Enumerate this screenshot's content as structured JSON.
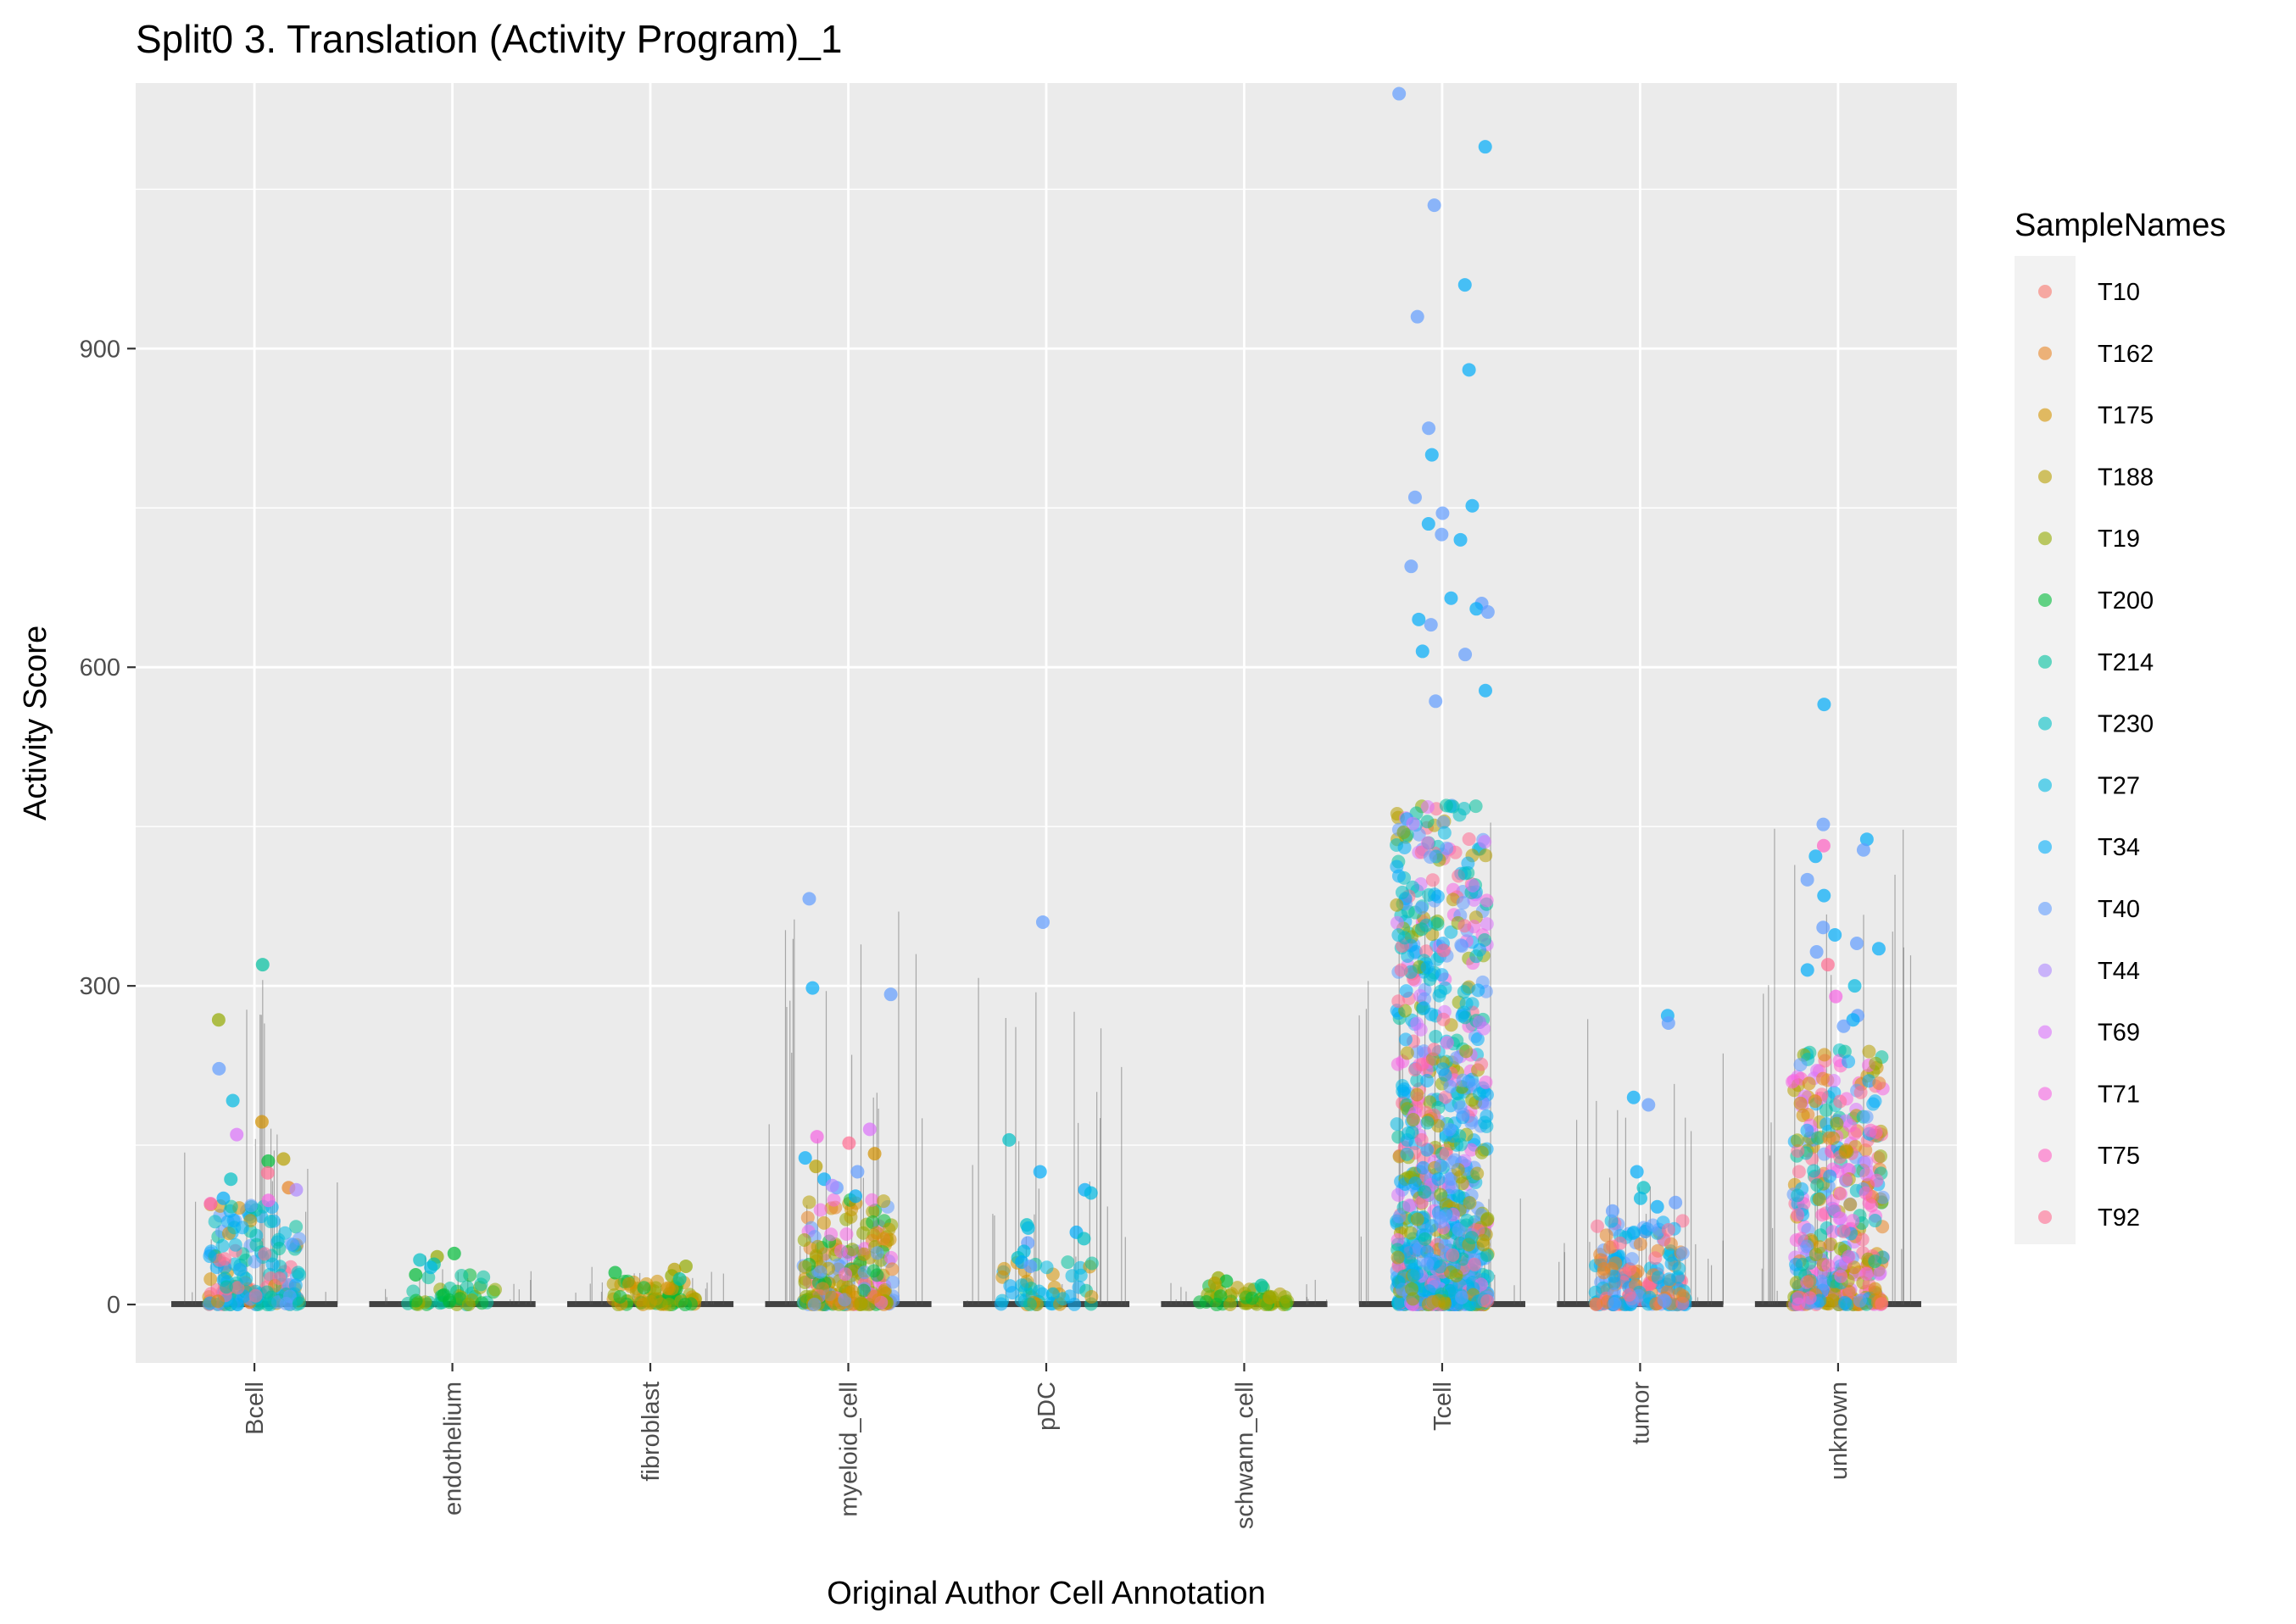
{
  "chart_data": {
    "type": "scatter",
    "title": "Split0 3. Translation (Activity Program)_1",
    "xlabel": "Original Author Cell Annotation",
    "ylabel": "Activity Score",
    "categories": [
      "Bcell",
      "endothelium",
      "fibroblast",
      "myeloid_cell",
      "pDC",
      "schwann_cell",
      "Tcell",
      "tumor",
      "unknown"
    ],
    "ylim": [
      -55,
      1150
    ],
    "yticks": [
      0,
      300,
      600,
      900
    ],
    "ytick_labels": [
      "0",
      "300",
      "600",
      "900"
    ],
    "grid": true,
    "legend": {
      "title": "SampleNames",
      "position": "right",
      "entries": [
        "T10",
        "T162",
        "T175",
        "T188",
        "T19",
        "T200",
        "T214",
        "T230",
        "T27",
        "T34",
        "T40",
        "T44",
        "T69",
        "T71",
        "T75",
        "T92"
      ],
      "colors": [
        "#F8766D",
        "#E88526",
        "#D39200",
        "#B79F00",
        "#93AA00",
        "#00BA38",
        "#00C19F",
        "#00BFC4",
        "#00B9E3",
        "#00ADFA",
        "#619CFF",
        "#AE87FF",
        "#DB72FB",
        "#F564E3",
        "#FF61C3",
        "#FF6C91"
      ]
    },
    "groups": [
      {
        "category": "Bcell",
        "max": 320,
        "outliers": [
          [
            6,
            320
          ],
          [
            4,
            268
          ],
          [
            10,
            222
          ],
          [
            8,
            192
          ],
          [
            2,
            172
          ],
          [
            12,
            160
          ],
          [
            3,
            137
          ],
          [
            5,
            135
          ],
          [
            15,
            124
          ],
          [
            7,
            118
          ],
          [
            1,
            110
          ],
          [
            11,
            108
          ],
          [
            9,
            100
          ],
          [
            13,
            98
          ],
          [
            14,
            95
          ]
        ]
      },
      {
        "category": "endothelium",
        "max": 48,
        "outliers": [
          [
            5,
            48
          ],
          [
            4,
            45
          ],
          [
            7,
            42
          ],
          [
            6,
            38
          ],
          [
            8,
            35
          ],
          [
            5,
            28
          ]
        ]
      },
      {
        "category": "fibroblast",
        "max": 36,
        "outliers": [
          [
            4,
            36
          ],
          [
            3,
            33
          ],
          [
            5,
            30
          ],
          [
            4,
            27
          ],
          [
            6,
            24
          ]
        ]
      },
      {
        "category": "myeloid_cell",
        "max": 382,
        "outliers": [
          [
            10,
            382
          ],
          [
            9,
            298
          ],
          [
            10,
            292
          ],
          [
            12,
            165
          ],
          [
            15,
            152
          ],
          [
            13,
            158
          ],
          [
            2,
            142
          ],
          [
            9,
            138
          ],
          [
            3,
            130
          ],
          [
            10,
            125
          ],
          [
            9,
            118
          ],
          [
            10,
            110
          ],
          [
            11,
            112
          ],
          [
            9,
            102
          ]
        ]
      },
      {
        "category": "pDC",
        "max": 360,
        "outliers": [
          [
            10,
            360
          ],
          [
            7,
            155
          ],
          [
            9,
            125
          ],
          [
            9,
            108
          ],
          [
            8,
            105
          ],
          [
            7,
            75
          ],
          [
            8,
            72
          ],
          [
            9,
            68
          ],
          [
            7,
            62
          ],
          [
            10,
            58
          ],
          [
            8,
            50
          ],
          [
            7,
            44
          ],
          [
            9,
            40
          ],
          [
            10,
            36
          ]
        ]
      },
      {
        "category": "schwann_cell",
        "max": 25,
        "outliers": [
          [
            4,
            25
          ],
          [
            5,
            22
          ],
          [
            3,
            20
          ],
          [
            6,
            18
          ]
        ]
      },
      {
        "category": "Tcell",
        "max": 1140,
        "outliers": [
          [
            10,
            1140
          ],
          [
            9,
            1090
          ],
          [
            10,
            1035
          ],
          [
            9,
            960
          ],
          [
            10,
            930
          ],
          [
            9,
            880
          ],
          [
            10,
            825
          ],
          [
            9,
            800
          ],
          [
            10,
            760
          ],
          [
            9,
            752
          ],
          [
            10,
            745
          ],
          [
            9,
            735
          ],
          [
            10,
            725
          ],
          [
            9,
            720
          ],
          [
            10,
            695
          ],
          [
            9,
            665
          ],
          [
            10,
            660
          ],
          [
            9,
            655
          ],
          [
            10,
            652
          ],
          [
            9,
            645
          ],
          [
            10,
            640
          ],
          [
            9,
            615
          ],
          [
            10,
            612
          ],
          [
            9,
            578
          ],
          [
            10,
            568
          ]
        ]
      },
      {
        "category": "tumor",
        "max": 272,
        "outliers": [
          [
            9,
            272
          ],
          [
            10,
            265
          ],
          [
            9,
            195
          ],
          [
            10,
            188
          ],
          [
            7,
            110
          ],
          [
            9,
            125
          ],
          [
            8,
            100
          ],
          [
            10,
            96
          ],
          [
            9,
            92
          ],
          [
            10,
            88
          ]
        ]
      },
      {
        "category": "unknown",
        "max": 565,
        "outliers": [
          [
            9,
            565
          ],
          [
            10,
            452
          ],
          [
            9,
            438
          ],
          [
            14,
            432
          ],
          [
            10,
            428
          ],
          [
            9,
            422
          ],
          [
            10,
            400
          ],
          [
            9,
            385
          ],
          [
            10,
            355
          ],
          [
            9,
            348
          ],
          [
            10,
            340
          ],
          [
            9,
            335
          ],
          [
            10,
            332
          ],
          [
            15,
            320
          ],
          [
            9,
            315
          ],
          [
            8,
            300
          ],
          [
            13,
            290
          ],
          [
            10,
            272
          ],
          [
            9,
            268
          ],
          [
            10,
            262
          ]
        ]
      }
    ]
  }
}
